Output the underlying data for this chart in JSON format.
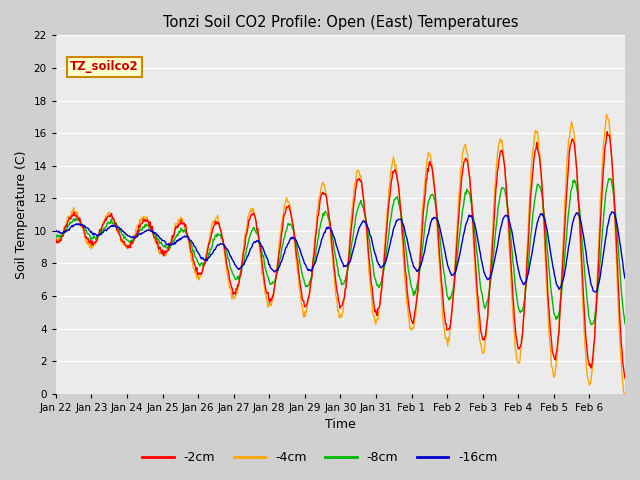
{
  "title": "Tonzi Soil CO2 Profile: Open (East) Temperatures",
  "xlabel": "Time",
  "ylabel": "Soil Temperature (C)",
  "ylim": [
    0,
    22
  ],
  "yticks": [
    0,
    2,
    4,
    6,
    8,
    10,
    12,
    14,
    16,
    18,
    20,
    22
  ],
  "colors": {
    "-2cm": "#ff0000",
    "-4cm": "#ffa500",
    "-8cm": "#00bb00",
    "-16cm": "#0000cc"
  },
  "legend_label": "TZ_soilco2",
  "legend_box_color": "#ffffcc",
  "legend_box_edge": "#cc8800",
  "plot_bg_color": "#ebebeb",
  "fig_bg_color": "#d0d0d0",
  "linewidth": 1.0,
  "xtick_labels": [
    "Jan 22",
    "Jan 23",
    "Jan 24",
    "Jan 25",
    "Jan 26",
    "Jan 27",
    "Jan 28",
    "Jan 29",
    "Jan 30",
    "Jan 31",
    "Feb 1",
    "Feb 2",
    "Feb 3",
    "Feb 4",
    "Feb 5",
    "Feb 6"
  ]
}
